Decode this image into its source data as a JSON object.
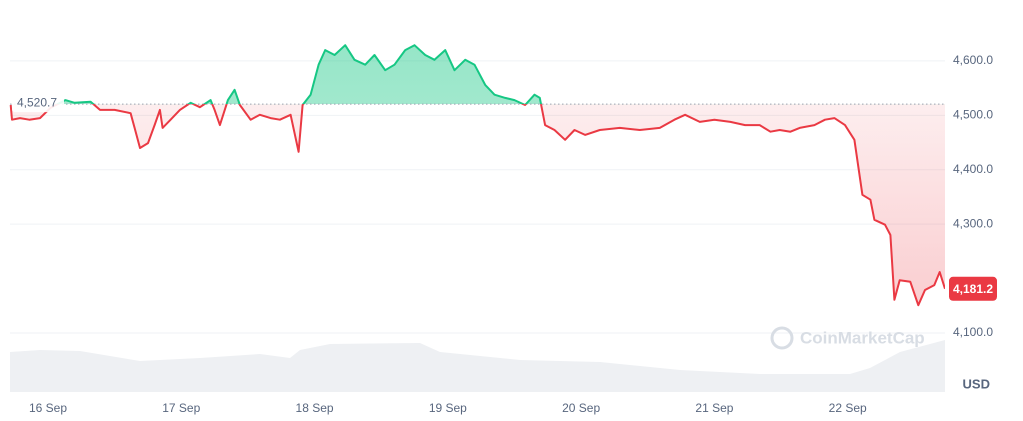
{
  "chart_data": {
    "type": "line",
    "x": [
      -0.28,
      -0.27,
      -0.21,
      -0.14,
      -0.06,
      0.02,
      0.13,
      0.2,
      0.32,
      0.39,
      0.5,
      0.62,
      0.65,
      0.69,
      0.75,
      0.8,
      0.84,
      0.86,
      0.92,
      0.99,
      1.07,
      1.14,
      1.22,
      1.25,
      1.29,
      1.35,
      1.4,
      1.44,
      1.52,
      1.59,
      1.67,
      1.74,
      1.82,
      1.88,
      1.91,
      1.97,
      2.03,
      2.08,
      2.15,
      2.23,
      2.3,
      2.38,
      2.45,
      2.53,
      2.6,
      2.68,
      2.75,
      2.83,
      2.9,
      2.98,
      3.05,
      3.13,
      3.2,
      3.28,
      3.35,
      3.43,
      3.5,
      3.58,
      3.65,
      3.69,
      3.73,
      3.8,
      3.88,
      3.95,
      4.03,
      4.14,
      4.29,
      4.44,
      4.59,
      4.7,
      4.78,
      4.89,
      5.0,
      5.12,
      5.23,
      5.34,
      5.42,
      5.49,
      5.57,
      5.64,
      5.75,
      5.83,
      5.9,
      5.98,
      6.05,
      6.11,
      6.17,
      6.2,
      6.28,
      6.32,
      6.35,
      6.39,
      6.47,
      6.53,
      6.58,
      6.65,
      6.69,
      6.73
    ],
    "values": [
      4519,
      4492,
      4495,
      4492,
      4495,
      4514,
      4528,
      4523,
      4525,
      4510,
      4510,
      4504,
      4477,
      4440,
      4449,
      4482,
      4510,
      4477,
      4492,
      4510,
      4523,
      4515,
      4528,
      4510,
      4482,
      4528,
      4547,
      4519,
      4492,
      4501,
      4495,
      4492,
      4501,
      4433,
      4519,
      4538,
      4593,
      4620,
      4611,
      4629,
      4602,
      4593,
      4611,
      4583,
      4593,
      4620,
      4629,
      4611,
      4602,
      4620,
      4583,
      4602,
      4593,
      4556,
      4538,
      4532,
      4528,
      4519,
      4538,
      4532,
      4482,
      4473,
      4455,
      4473,
      4464,
      4473,
      4477,
      4473,
      4477,
      4492,
      4501,
      4488,
      4492,
      4488,
      4482,
      4482,
      4470,
      4473,
      4470,
      4477,
      4482,
      4492,
      4495,
      4482,
      4455,
      4354,
      4345,
      4308,
      4299,
      4280,
      4161,
      4197,
      4194,
      4151,
      4179,
      4188,
      4212,
      4181.2
    ],
    "up_color": "#16c784",
    "down_color": "#ea3943",
    "baseline": {
      "value": 4520.7,
      "label": "4,520.7"
    },
    "current_price": {
      "value": 4181.2,
      "label": "4,181.2"
    },
    "xlim": [
      -0.285,
      6.73
    ],
    "ylim": [
      3986,
      4712
    ],
    "xticks": [
      {
        "value": 0,
        "label": "16 Sep"
      },
      {
        "value": 1,
        "label": "17 Sep"
      },
      {
        "value": 2,
        "label": "18 Sep"
      },
      {
        "value": 3,
        "label": "19 Sep"
      },
      {
        "value": 4,
        "label": "20 Sep"
      },
      {
        "value": 5,
        "label": "21 Sep"
      },
      {
        "value": 6,
        "label": "22 Sep"
      }
    ],
    "yticks": [
      {
        "value": 4100,
        "label": "4,100.0"
      },
      {
        "value": 4300,
        "label": "4,300.0"
      },
      {
        "value": 4400,
        "label": "4,400.0"
      },
      {
        "value": 4500,
        "label": "4,500.0"
      },
      {
        "value": 4600,
        "label": "4,600.0"
      }
    ],
    "grid": true,
    "currency": "USD",
    "watermark": "CoinMarketCap"
  }
}
